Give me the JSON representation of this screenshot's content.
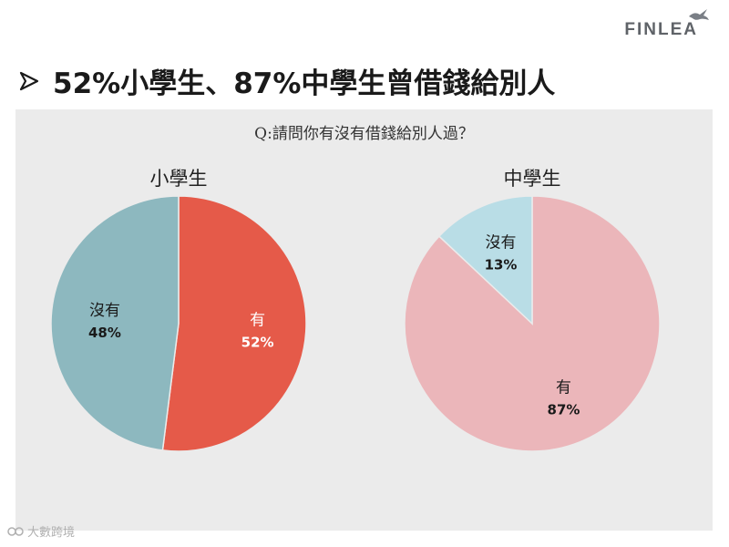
{
  "brand": {
    "logo_text": "FINLEA",
    "logo_icon": "bird-icon"
  },
  "headline": {
    "bullet_icon": "arrow-bullet-icon",
    "text": "52%小學生、87%中學生曾借錢給別人"
  },
  "panel": {
    "question": "Q:請問你有沒有借錢給別人過？"
  },
  "watermark": {
    "text": "大數跨境"
  },
  "colors": {
    "primary_yes": "#e55a49",
    "primary_no": "#8db8bf",
    "secondary_yes": "#ebb6ba",
    "secondary_no": "#b9dde6",
    "panel_bg": "#ebebeb"
  },
  "chart_data": [
    {
      "type": "pie",
      "title": "小學生",
      "slices": [
        {
          "label": "有",
          "value": 52,
          "display": "52%",
          "color": "#e55a49",
          "label_color": "#ffffff"
        },
        {
          "label": "沒有",
          "value": 48,
          "display": "48%",
          "color": "#8db8bf",
          "label_color": "#1a1a1a"
        }
      ]
    },
    {
      "type": "pie",
      "title": "中學生",
      "slices": [
        {
          "label": "有",
          "value": 87,
          "display": "87%",
          "color": "#ebb6ba",
          "label_color": "#1a1a1a"
        },
        {
          "label": "沒有",
          "value": 13,
          "display": "13%",
          "color": "#b9dde6",
          "label_color": "#1a1a1a"
        }
      ]
    }
  ]
}
